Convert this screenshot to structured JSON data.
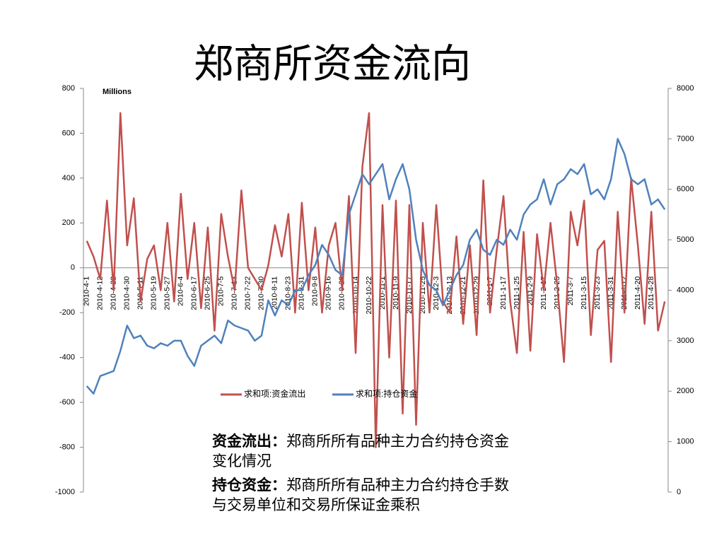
{
  "chart_data": {
    "type": "line",
    "title": "郑商所资金流向",
    "y_unit": "Millions",
    "categories": [
      "2010-4-1",
      null,
      "2010-4-12",
      null,
      "2010-4-22",
      null,
      "2010-4-30",
      null,
      "2010-5-11",
      null,
      "2010-5-19",
      null,
      "2010-5-27",
      null,
      "2010-6-4",
      null,
      "2010-6-17",
      null,
      "2010-6-25",
      null,
      "2010-7-5",
      null,
      "2010-7-13",
      null,
      "2010-7-22",
      null,
      "2010-7-30",
      null,
      "2010-8-11",
      null,
      "2010-8-23",
      null,
      "2010-8-31",
      null,
      "2010-9-8",
      null,
      "2010-9-16",
      null,
      "2010-9-29",
      null,
      "2010-10-14",
      null,
      "2010-10-22",
      null,
      "2010-11-1",
      null,
      "2010-11-9",
      null,
      "2010-11-17",
      null,
      "2010-11-25",
      null,
      "2010-12-3",
      null,
      "2010-12-13",
      null,
      "2010-12-21",
      null,
      "2010-12-29",
      null,
      "2011-1-7",
      null,
      "2011-1-17",
      null,
      "2011-1-25",
      null,
      "2011-2-9",
      null,
      "2011-2-17",
      null,
      "2011-2-25",
      null,
      "2011-3-7",
      null,
      "2011-3-15",
      null,
      "2011-3-23",
      null,
      "2011-3-31",
      null,
      "2011-4-12",
      null,
      "2011-4-20",
      null,
      "2011-4-28",
      null,
      null
    ],
    "series": [
      {
        "name": "求和项:资金流出",
        "color": "#c0504d",
        "values": [
          120,
          50,
          -50,
          300,
          -100,
          690,
          100,
          310,
          -150,
          40,
          100,
          -100,
          200,
          -150,
          330,
          -50,
          200,
          -180,
          180,
          -280,
          240,
          50,
          -100,
          345,
          0,
          -50,
          -100,
          10,
          190,
          50,
          240,
          -200,
          290,
          -100,
          180,
          -200,
          100,
          200,
          -100,
          320,
          -380,
          450,
          690,
          -800,
          280,
          -400,
          300,
          -650,
          280,
          -700,
          200,
          -200,
          280,
          -150,
          -200,
          140,
          -250,
          100,
          -300,
          390,
          -200,
          80,
          320,
          -150,
          -380,
          160,
          -370,
          150,
          -100,
          200,
          -80,
          -420,
          250,
          100,
          300,
          -300,
          80,
          120,
          -420,
          250,
          -200,
          400,
          100,
          -250,
          250,
          -280,
          -150
        ]
      },
      {
        "name": "求和项:持仓资金",
        "color": "#4f81bd",
        "axis": "y2",
        "values": [
          2100,
          1950,
          2300,
          2350,
          2400,
          2800,
          3300,
          3050,
          3100,
          2900,
          2850,
          2950,
          2900,
          3000,
          3000,
          2700,
          2500,
          2900,
          3000,
          3100,
          2950,
          3400,
          3300,
          3250,
          3200,
          3000,
          3100,
          3800,
          3500,
          3800,
          3700,
          4000,
          4000,
          4300,
          4500,
          4900,
          4700,
          4400,
          4300,
          5500,
          5900,
          6300,
          6100,
          6300,
          6500,
          5800,
          6200,
          6500,
          6000,
          5000,
          4400,
          4100,
          4000,
          3700,
          4000,
          4300,
          4500,
          5000,
          5200,
          4800,
          4700,
          5000,
          4900,
          5200,
          5000,
          5500,
          5700,
          5800,
          6200,
          5700,
          6100,
          6200,
          6400,
          6300,
          6500,
          5900,
          6000,
          5800,
          6200,
          7000,
          6700,
          6200,
          6100,
          6200,
          5700,
          5800,
          5600
        ]
      }
    ],
    "ylim": [
      -1000,
      800
    ],
    "yticks": [
      -1000,
      -800,
      -600,
      -400,
      -200,
      0,
      200,
      400,
      600,
      800
    ],
    "y2lim": [
      0,
      8000
    ],
    "y2ticks": [
      0,
      1000,
      2000,
      3000,
      4000,
      5000,
      6000,
      7000,
      8000
    ]
  },
  "notes": [
    {
      "term": "资金流出：",
      "text": "郑商所所有品种主力合约持仓资金变化情况"
    },
    {
      "term": "持仓资金：",
      "text": "郑商所所有品种主力合约持仓手数与交易单位和交易所保证金乘积"
    }
  ]
}
